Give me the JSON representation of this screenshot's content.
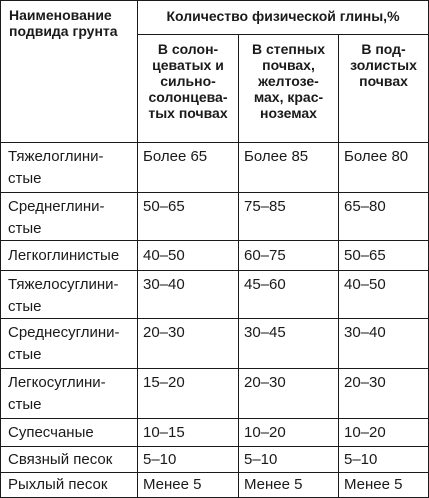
{
  "header": {
    "col1": "Наименование подвида грунта",
    "group": "Количество физической глины,%",
    "sub": [
      "В солон- цеватых и сильно- солонцева- тых почвах",
      "В степных почвах, желтозе- мах, крас- ноземах",
      "В под- золистых почвах"
    ]
  },
  "rows": [
    {
      "name": "Тяжелоглини- стые",
      "a": "Более 65",
      "b": "Более 85",
      "c": "Более 80"
    },
    {
      "name": "Среднеглини- стые",
      "a": "50–65",
      "b": "75–85",
      "c": "65–80"
    },
    {
      "name": "Легкоглинистые",
      "a": "40–50",
      "b": "60–75",
      "c": "50–65"
    },
    {
      "name": "Тяжелосуглини- стые",
      "a": "30–40",
      "b": "45–60",
      "c": "40–50"
    },
    {
      "name": "Среднесуглини- стые",
      "a": "20–30",
      "b": "30–45",
      "c": "30–40"
    },
    {
      "name": "Легкосуглини- стые",
      "a": "15–20",
      "b": "20–30",
      "c": "20–30"
    },
    {
      "name": "Супесчаные",
      "a": "10–15",
      "b": "10–20",
      "c": "10–20"
    },
    {
      "name": "Связный песок",
      "a": "5–10",
      "b": "5–10",
      "c": "5–10"
    },
    {
      "name": "Рыхлый песок",
      "a": "Менее 5",
      "b": "Менее 5",
      "c": "Менее 5"
    }
  ]
}
